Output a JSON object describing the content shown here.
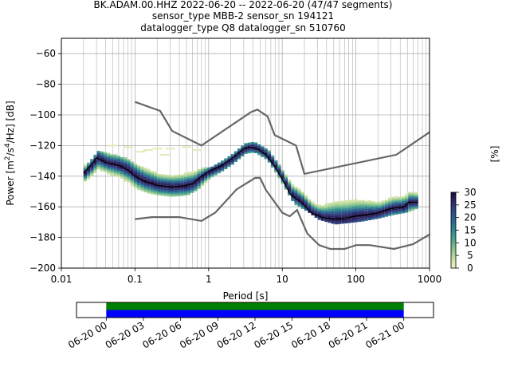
{
  "title": {
    "line1": "BK.ADAM.00.HHZ   2022-06-20 -- 2022-06-20  (47/47 segments)",
    "line2": "sensor_type MBB-2 sensor_sn 194121",
    "line3": "datalogger_type Q8 datalogger_sn 510760"
  },
  "chart_data": [
    {
      "type": "heatmap",
      "description_role": "ppsd",
      "xlabel": "Period [s]",
      "ylabel": "Power [m²/s⁴/Hz] [dB]",
      "x_scale": "log",
      "xlim": [
        0.01,
        1000
      ],
      "ylim": [
        -200,
        -50
      ],
      "x_ticks": [
        {
          "value": 0.01,
          "label": "0.01"
        },
        {
          "value": 0.1,
          "label": "0.1"
        },
        {
          "value": 1,
          "label": "1"
        },
        {
          "value": 10,
          "label": "10"
        },
        {
          "value": 100,
          "label": "100"
        },
        {
          "value": 1000,
          "label": "1000"
        }
      ],
      "y_ticks": [
        -60,
        -80,
        -100,
        -120,
        -140,
        -160,
        -180,
        -200
      ],
      "grid": true,
      "colorbar": {
        "label": "[%]",
        "ticks": [
          0,
          5,
          10,
          15,
          20,
          25,
          30
        ],
        "range": [
          0,
          30
        ],
        "colors": [
          "#f4f1c6",
          "#c6e0a0",
          "#8bc38e",
          "#4fa58e",
          "#2e8790",
          "#2a6790",
          "#2d4a8a",
          "#2e2a6a",
          "#1f0a3a"
        ]
      },
      "noise_models": {
        "high": [
          [
            0.1,
            -91.5
          ],
          [
            0.22,
            -97.4
          ],
          [
            0.32,
            -110.5
          ],
          [
            0.8,
            -120
          ],
          [
            3.8,
            -98
          ],
          [
            4.6,
            -96.5
          ],
          [
            6.3,
            -101
          ],
          [
            7.9,
            -113.2
          ],
          [
            15.4,
            -120
          ],
          [
            20,
            -138.5
          ],
          [
            354.8,
            -126
          ],
          [
            1000,
            -111.3
          ]
        ],
        "low": [
          [
            0.1,
            -168
          ],
          [
            0.17,
            -166.7
          ],
          [
            0.4,
            -166.7
          ],
          [
            0.8,
            -169.2
          ],
          [
            1.24,
            -163.7
          ],
          [
            2.4,
            -148.6
          ],
          [
            4.3,
            -141.1
          ],
          [
            5.0,
            -141.1
          ],
          [
            6.0,
            -149
          ],
          [
            10,
            -163.8
          ],
          [
            12.6,
            -166.2
          ],
          [
            15.9,
            -162.1
          ],
          [
            21.9,
            -177.5
          ],
          [
            31.6,
            -185
          ],
          [
            45,
            -187.5
          ],
          [
            70,
            -187.5
          ],
          [
            101,
            -185
          ],
          [
            154,
            -185
          ],
          [
            328,
            -187.5
          ],
          [
            600,
            -184.4
          ],
          [
            1000,
            -178
          ]
        ]
      },
      "median": [
        [
          0.02,
          -138
        ],
        [
          0.025,
          -133
        ],
        [
          0.03,
          -128
        ],
        [
          0.04,
          -131
        ],
        [
          0.06,
          -133
        ],
        [
          0.08,
          -136
        ],
        [
          0.1,
          -140
        ],
        [
          0.13,
          -143
        ],
        [
          0.2,
          -146
        ],
        [
          0.3,
          -147
        ],
        [
          0.45,
          -146.5
        ],
        [
          0.6,
          -145
        ],
        [
          0.8,
          -140
        ],
        [
          1.0,
          -137
        ],
        [
          1.5,
          -133
        ],
        [
          2.0,
          -129
        ],
        [
          3.0,
          -122
        ],
        [
          3.6,
          -121
        ],
        [
          4.5,
          -122
        ],
        [
          6.0,
          -126
        ],
        [
          8.0,
          -134
        ],
        [
          10.0,
          -142
        ],
        [
          13.0,
          -152
        ],
        [
          18.0,
          -157
        ],
        [
          25.0,
          -164
        ],
        [
          35.0,
          -167
        ],
        [
          50.0,
          -168
        ],
        [
          70.0,
          -167.5
        ],
        [
          100.0,
          -166
        ],
        [
          150.0,
          -165
        ],
        [
          200.0,
          -164
        ],
        [
          300.0,
          -161
        ],
        [
          450.0,
          -160
        ],
        [
          520.0,
          -157
        ],
        [
          700.0,
          -157
        ]
      ],
      "density": [
        {
          "x": 0.02,
          "ylo": -143,
          "yhi": -133
        },
        {
          "x": 0.025,
          "ylo": -140,
          "yhi": -128
        },
        {
          "x": 0.03,
          "ylo": -137,
          "yhi": -123
        },
        {
          "x": 0.04,
          "ylo": -138,
          "yhi": -125
        },
        {
          "x": 0.05,
          "ylo": -140,
          "yhi": -126
        },
        {
          "x": 0.07,
          "ylo": -143,
          "yhi": -128
        },
        {
          "x": 0.1,
          "ylo": -148,
          "yhi": -132
        },
        {
          "x": 0.15,
          "ylo": -151,
          "yhi": -136
        },
        {
          "x": 0.2,
          "ylo": -152,
          "yhi": -138
        },
        {
          "x": 0.3,
          "ylo": -153,
          "yhi": -139
        },
        {
          "x": 0.5,
          "ylo": -152,
          "yhi": -137
        },
        {
          "x": 0.7,
          "ylo": -148,
          "yhi": -135
        },
        {
          "x": 1.0,
          "ylo": -141,
          "yhi": -134
        },
        {
          "x": 1.5,
          "ylo": -136,
          "yhi": -130
        },
        {
          "x": 2.0,
          "ylo": -132,
          "yhi": -126
        },
        {
          "x": 3.0,
          "ylo": -125,
          "yhi": -119
        },
        {
          "x": 4.0,
          "ylo": -124,
          "yhi": -118
        },
        {
          "x": 6.0,
          "ylo": -129,
          "yhi": -122
        },
        {
          "x": 8.0,
          "ylo": -138,
          "yhi": -130
        },
        {
          "x": 10.0,
          "ylo": -146,
          "yhi": -137
        },
        {
          "x": 14.0,
          "ylo": -158,
          "yhi": -145
        },
        {
          "x": 20.0,
          "ylo": -162,
          "yhi": -150
        },
        {
          "x": 30.0,
          "ylo": -168,
          "yhi": -156
        },
        {
          "x": 50.0,
          "ylo": -171,
          "yhi": -150
        },
        {
          "x": 80.0,
          "ylo": -170,
          "yhi": -150
        },
        {
          "x": 120.0,
          "ylo": -169,
          "yhi": -151
        },
        {
          "x": 200.0,
          "ylo": -167,
          "yhi": -154
        },
        {
          "x": 300.0,
          "ylo": -165,
          "yhi": -152
        },
        {
          "x": 500.0,
          "ylo": -163,
          "yhi": -150
        },
        {
          "x": 700.0,
          "ylo": -160,
          "yhi": -150
        }
      ],
      "scatter_cloud": [
        [
          0.15,
          -123
        ],
        [
          0.2,
          -122
        ],
        [
          0.3,
          -122
        ],
        [
          0.5,
          -121
        ],
        [
          0.7,
          -123
        ],
        [
          0.25,
          -126
        ],
        [
          0.12,
          -124
        ],
        [
          0.08,
          -121
        ],
        [
          0.05,
          -120
        ]
      ]
    },
    {
      "type": "bar",
      "description_role": "data-coverage",
      "x_ticks": [
        "06-20 00",
        "06-20 03",
        "06-20 06",
        "06-20 09",
        "06-20 12",
        "06-20 15",
        "06-20 18",
        "06-20 21",
        "06-21 00"
      ],
      "xlim_hours": [
        -2.4,
        26.4
      ],
      "coverage_hours": [
        0,
        24
      ],
      "series": [
        {
          "color": "#008000",
          "values": [
            1
          ]
        },
        {
          "color": "#0000ff",
          "values": [
            1
          ]
        }
      ]
    }
  ],
  "colors": {
    "noise_model": "#666666",
    "median": "#000000",
    "grid": "#b0b0b0"
  }
}
